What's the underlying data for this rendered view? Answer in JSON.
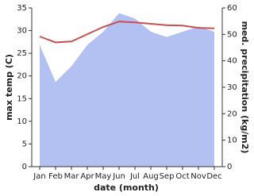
{
  "chart_data": {
    "type": "combo",
    "categories": [
      "Jan",
      "Feb",
      "Mar",
      "Apr",
      "May",
      "Jun",
      "Jul",
      "Aug",
      "Sep",
      "Oct",
      "Nov",
      "Dec"
    ],
    "x_label": "date (month)",
    "y_label": "max temp (C)",
    "y2_label": "med. precipitation (kg/m2)",
    "series": [
      {
        "name": "med. precipitation",
        "type": "area",
        "axis": "y2",
        "color": "#b3c0f2",
        "values": [
          46,
          32,
          38,
          46,
          51,
          58,
          56,
          51,
          49,
          51,
          53,
          51
        ]
      },
      {
        "name": "max temp",
        "type": "line",
        "axis": "y",
        "color": "#c9504d",
        "values": [
          28.7,
          27.4,
          27.6,
          29.2,
          30.8,
          32.0,
          31.8,
          31.5,
          31.2,
          31.1,
          30.6,
          30.5
        ]
      }
    ],
    "ylim": [
      0,
      35
    ],
    "yticks": [
      0,
      5,
      10,
      15,
      20,
      25,
      30,
      35
    ],
    "y2lim": [
      0,
      60
    ],
    "y2ticks": [
      0,
      10,
      20,
      30,
      40,
      50,
      60
    ]
  }
}
